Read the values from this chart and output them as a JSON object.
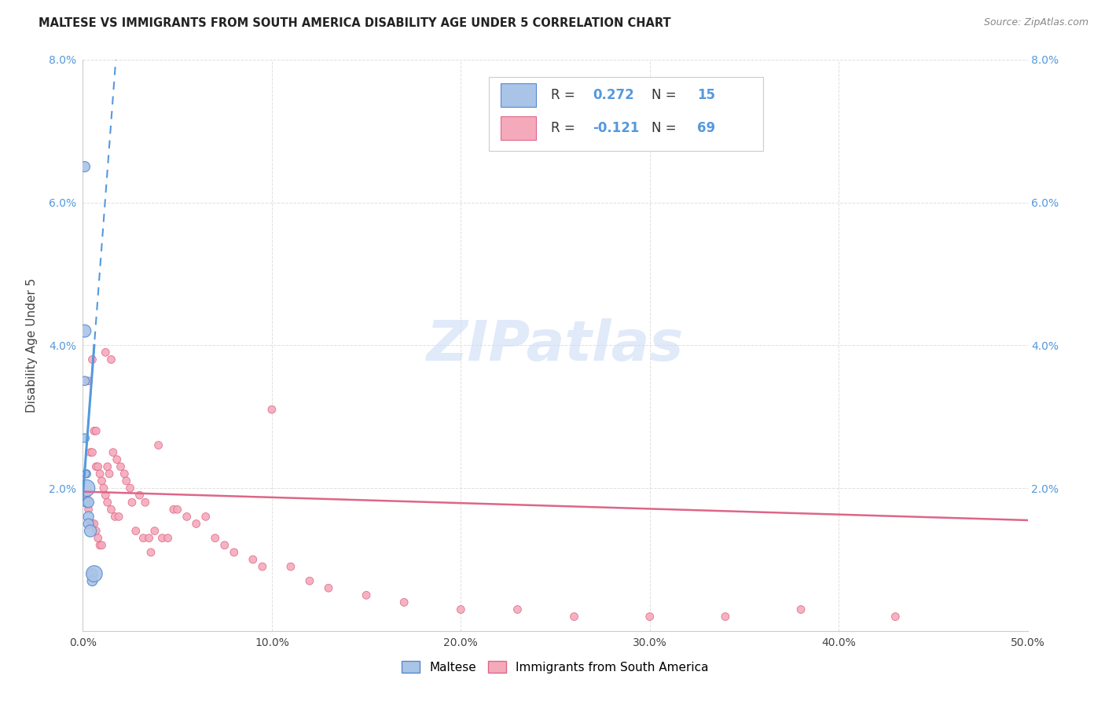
{
  "title": "MALTESE VS IMMIGRANTS FROM SOUTH AMERICA DISABILITY AGE UNDER 5 CORRELATION CHART",
  "source": "Source: ZipAtlas.com",
  "ylabel": "Disability Age Under 5",
  "xlim": [
    0.0,
    0.5
  ],
  "ylim": [
    0.0,
    0.08
  ],
  "xtick_vals": [
    0.0,
    0.1,
    0.2,
    0.3,
    0.4,
    0.5
  ],
  "xtick_labels": [
    "0.0%",
    "10.0%",
    "20.0%",
    "30.0%",
    "40.0%",
    "50.0%"
  ],
  "ytick_vals": [
    0.0,
    0.02,
    0.04,
    0.06,
    0.08
  ],
  "ytick_labels": [
    "",
    "2.0%",
    "4.0%",
    "6.0%",
    "8.0%"
  ],
  "maltese_R": 0.272,
  "maltese_N": 15,
  "south_america_R": -0.121,
  "south_america_N": 69,
  "maltese_color": "#aac4e8",
  "maltese_edge_color": "#5588cc",
  "south_america_color": "#f5aabb",
  "south_america_edge_color": "#dd6688",
  "trend_blue_color": "#5599dd",
  "trend_pink_color": "#dd6688",
  "background_color": "#ffffff",
  "grid_color": "#e0e0e0",
  "watermark_text": "ZIPatlas",
  "watermark_color": "#ccddf5",
  "tick_color_blue": "#5599dd",
  "tick_color_dark": "#444444",
  "maltese_x": [
    0.001,
    0.001,
    0.001,
    0.002,
    0.002,
    0.002,
    0.003,
    0.003,
    0.003,
    0.004,
    0.005,
    0.005,
    0.006,
    0.001,
    0.0015
  ],
  "maltese_y": [
    0.065,
    0.042,
    0.035,
    0.022,
    0.02,
    0.018,
    0.018,
    0.016,
    0.015,
    0.014,
    0.008,
    0.007,
    0.008,
    0.027,
    0.022
  ],
  "maltese_sizes": [
    90,
    130,
    70,
    55,
    230,
    85,
    95,
    90,
    85,
    120,
    90,
    85,
    220,
    65,
    50
  ],
  "sa_x": [
    0.002,
    0.003,
    0.003,
    0.004,
    0.004,
    0.005,
    0.005,
    0.005,
    0.006,
    0.006,
    0.007,
    0.007,
    0.007,
    0.008,
    0.008,
    0.009,
    0.009,
    0.01,
    0.01,
    0.011,
    0.012,
    0.012,
    0.013,
    0.013,
    0.014,
    0.015,
    0.015,
    0.016,
    0.017,
    0.018,
    0.019,
    0.02,
    0.022,
    0.023,
    0.025,
    0.026,
    0.028,
    0.03,
    0.032,
    0.033,
    0.035,
    0.036,
    0.038,
    0.04,
    0.042,
    0.045,
    0.048,
    0.05,
    0.055,
    0.06,
    0.065,
    0.07,
    0.075,
    0.08,
    0.09,
    0.095,
    0.1,
    0.11,
    0.12,
    0.13,
    0.15,
    0.17,
    0.2,
    0.23,
    0.26,
    0.3,
    0.34,
    0.38,
    0.43
  ],
  "sa_y": [
    0.019,
    0.035,
    0.017,
    0.025,
    0.015,
    0.038,
    0.025,
    0.015,
    0.028,
    0.015,
    0.028,
    0.023,
    0.014,
    0.023,
    0.013,
    0.022,
    0.012,
    0.021,
    0.012,
    0.02,
    0.039,
    0.019,
    0.023,
    0.018,
    0.022,
    0.038,
    0.017,
    0.025,
    0.016,
    0.024,
    0.016,
    0.023,
    0.022,
    0.021,
    0.02,
    0.018,
    0.014,
    0.019,
    0.013,
    0.018,
    0.013,
    0.011,
    0.014,
    0.026,
    0.013,
    0.013,
    0.017,
    0.017,
    0.016,
    0.015,
    0.016,
    0.013,
    0.012,
    0.011,
    0.01,
    0.009,
    0.031,
    0.009,
    0.007,
    0.006,
    0.005,
    0.004,
    0.003,
    0.003,
    0.002,
    0.002,
    0.002,
    0.003,
    0.002
  ],
  "sa_sizes": [
    50,
    50,
    50,
    50,
    50,
    50,
    50,
    50,
    50,
    50,
    50,
    50,
    50,
    50,
    50,
    50,
    50,
    50,
    50,
    50,
    50,
    50,
    50,
    50,
    50,
    50,
    50,
    50,
    50,
    50,
    50,
    50,
    50,
    50,
    50,
    50,
    50,
    50,
    50,
    50,
    50,
    50,
    50,
    50,
    50,
    50,
    50,
    50,
    50,
    50,
    50,
    50,
    50,
    50,
    50,
    50,
    50,
    50,
    50,
    50,
    50,
    50,
    50,
    50,
    50,
    50,
    50,
    50,
    50
  ],
  "trend_blue_intercept": 0.019,
  "trend_blue_slope": 3.5,
  "trend_pink_intercept": 0.0195,
  "trend_pink_slope": -0.008
}
